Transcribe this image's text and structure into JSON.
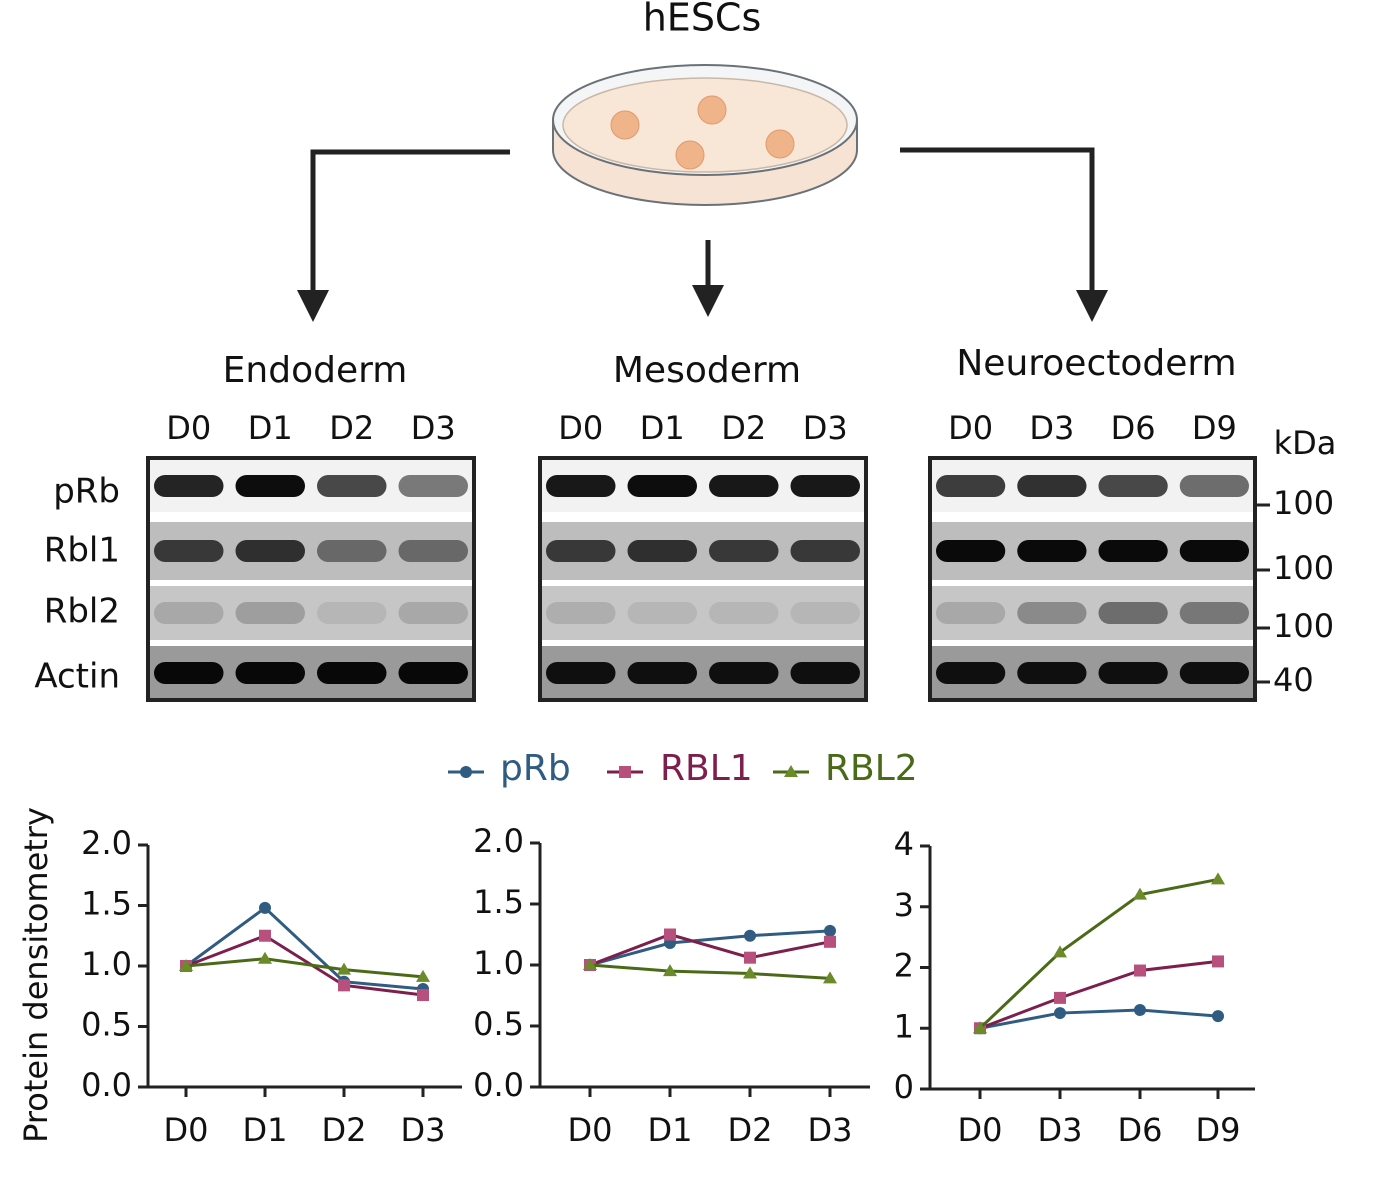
{
  "header": {
    "title": "hESCs"
  },
  "blots": [
    {
      "title": "Endoderm",
      "lanes": [
        "D0",
        "D1",
        "D2",
        "D3"
      ]
    },
    {
      "title": "Mesoderm",
      "lanes": [
        "D0",
        "D1",
        "D2",
        "D3"
      ]
    },
    {
      "title": "Neuroectoderm",
      "lanes": [
        "D0",
        "D3",
        "D6",
        "D9"
      ]
    }
  ],
  "blot_rows": [
    "pRb",
    "Rbl1",
    "Rbl2",
    "Actin"
  ],
  "marker_unit": "kDa",
  "markers": [
    100,
    100,
    100,
    40
  ],
  "chart_data": [
    {
      "type": "line",
      "ylabel": "Protein densitometry",
      "categories": [
        "D0",
        "D1",
        "D2",
        "D3"
      ],
      "ylim": [
        0,
        2
      ],
      "yticks": [
        {
          "value": 0,
          "label": "0.0"
        },
        0.5,
        {
          "value": 1,
          "label": "1.0"
        },
        1.5,
        {
          "value": 2,
          "label": "2.0"
        }
      ],
      "series": [
        {
          "name": "pRb",
          "color": "#2f5c80",
          "marker": "circle",
          "values": [
            1.0,
            1.48,
            0.87,
            0.81
          ]
        },
        {
          "name": "RBL1",
          "color": "#7d1f4c",
          "marker": "square",
          "values": [
            1.0,
            1.25,
            0.84,
            0.76
          ]
        },
        {
          "name": "RBL2",
          "color": "#4b6a18",
          "marker": "triangle",
          "values": [
            1.0,
            1.06,
            0.97,
            0.91
          ]
        }
      ]
    },
    {
      "type": "line",
      "categories": [
        "D0",
        "D1",
        "D2",
        "D3"
      ],
      "ylim": [
        0,
        2
      ],
      "yticks": [
        {
          "value": 0,
          "label": "0.0"
        },
        0.5,
        {
          "value": 1,
          "label": "1.0"
        },
        1.5,
        {
          "value": 2,
          "label": "2.0"
        }
      ],
      "series": [
        {
          "color": "#2f5c80",
          "marker": "circle",
          "values": [
            1.0,
            1.18,
            1.24,
            1.28
          ]
        },
        {
          "color": "#7d1f4c",
          "marker": "square",
          "values": [
            1.0,
            1.25,
            1.06,
            1.19
          ]
        },
        {
          "color": "#4b6a18",
          "marker": "triangle",
          "values": [
            1.0,
            0.95,
            0.93,
            0.89
          ]
        }
      ]
    },
    {
      "type": "line",
      "categories": [
        "D0",
        "D3",
        "D6",
        "D9"
      ],
      "ylim": [
        0,
        4
      ],
      "yticks": [
        0,
        1,
        2,
        3,
        4
      ],
      "series": [
        {
          "color": "#2f5c80",
          "marker": "circle",
          "values": [
            1.0,
            1.25,
            1.3,
            1.2
          ]
        },
        {
          "color": "#7d1f4c",
          "marker": "square",
          "values": [
            1.0,
            1.5,
            1.95,
            2.1
          ]
        },
        {
          "color": "#4b6a18",
          "marker": "triangle",
          "values": [
            1.0,
            2.25,
            3.2,
            3.45
          ]
        }
      ]
    }
  ]
}
